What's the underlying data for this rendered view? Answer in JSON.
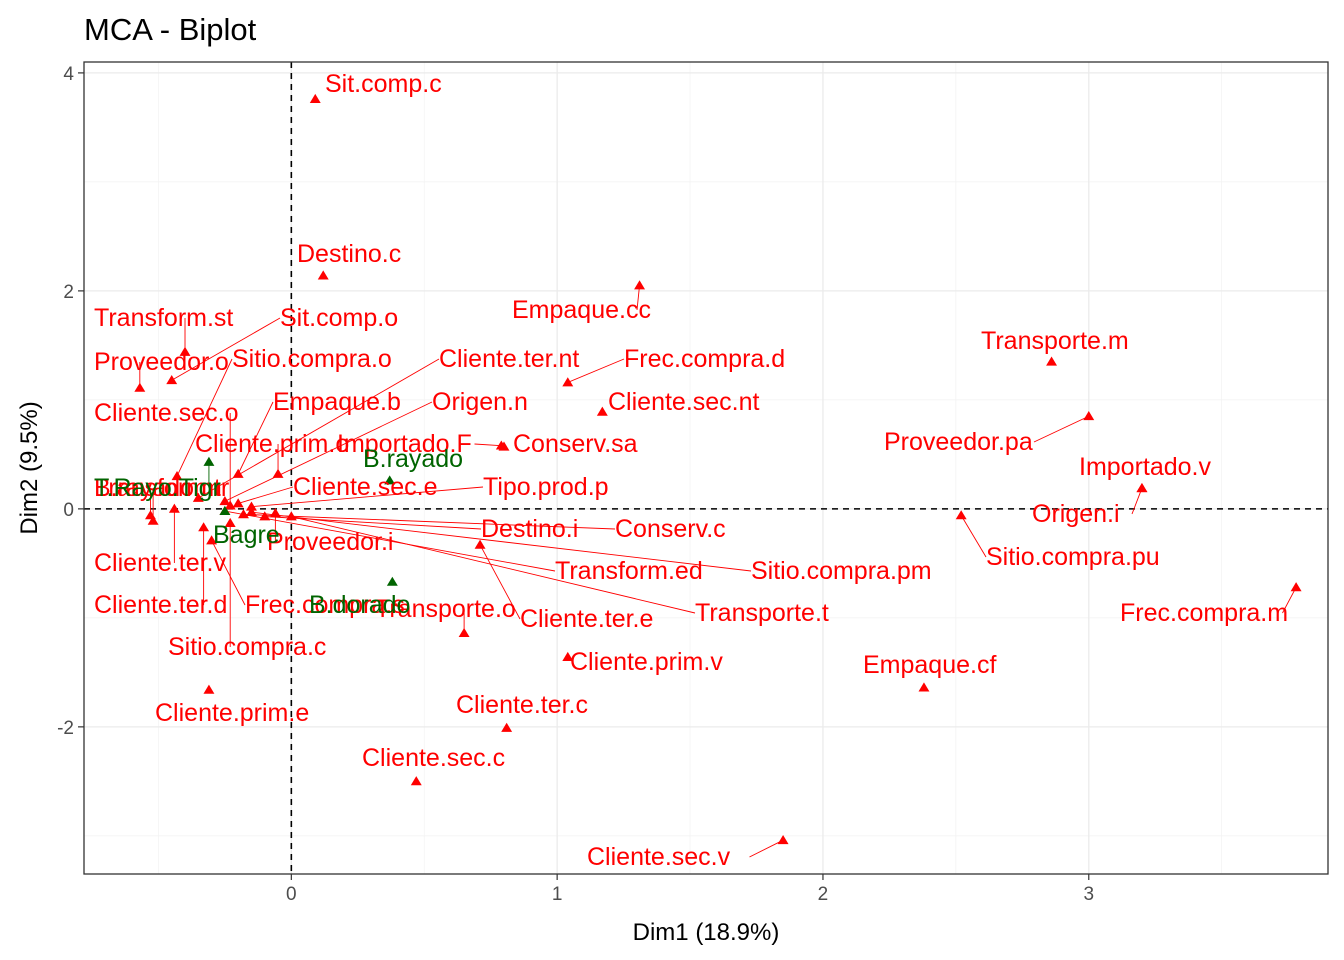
{
  "chart_data": {
    "type": "scatter",
    "title": "MCA - Biplot",
    "xlabel": "Dim1 (18.9%)",
    "ylabel": "Dim2 (9.5%)",
    "xlim": [
      -0.78,
      3.9
    ],
    "ylim": [
      -3.35,
      4.1
    ],
    "x_ticks": [
      0,
      1,
      2,
      3
    ],
    "y_ticks": [
      -2,
      0,
      2,
      4
    ],
    "grid": true,
    "reference_lines": {
      "x": 0,
      "y": 0,
      "style": "dashed"
    },
    "colors": {
      "variables": "#ff0000",
      "supplementary": "#006400"
    },
    "series": [
      {
        "color": "#ff0000",
        "points": [
          {
            "label": "Sit.comp.c",
            "x": 0.09,
            "y": 3.76
          },
          {
            "label": "Destino.c",
            "x": 0.12,
            "y": 2.14
          },
          {
            "label": "Empaque.cc",
            "x": 1.31,
            "y": 2.05
          },
          {
            "label": "Transform.st",
            "x": -0.4,
            "y": 1.44
          },
          {
            "label": "Sit.comp.o",
            "x": -0.45,
            "y": 1.18
          },
          {
            "label": "Proveedor.o",
            "x": -0.57,
            "y": 1.11
          },
          {
            "label": "Sitio.compra.o",
            "x": -0.43,
            "y": 0.3
          },
          {
            "label": "Cliente.ter.nt",
            "x": -0.35,
            "y": 0.1
          },
          {
            "label": "Frec.compra.d",
            "x": 1.04,
            "y": 1.16
          },
          {
            "label": "Cliente.sec.nt",
            "x": 1.17,
            "y": 0.89
          },
          {
            "label": "Cliente.sec.o",
            "x": -0.23,
            "y": 0.03
          },
          {
            "label": "Empaque.b",
            "x": -0.2,
            "y": 0.32
          },
          {
            "label": "Origen.n",
            "x": -0.25,
            "y": 0.07
          },
          {
            "label": "Cliente.prim.o",
            "x": -0.05,
            "y": 0.32
          },
          {
            "label": "Importado.F",
            "x": 0.79,
            "y": 0.58
          },
          {
            "label": "Conserv.sa",
            "x": 0.8,
            "y": 0.57
          },
          {
            "label": "Cliente.sec.e",
            "x": -0.2,
            "y": 0.05
          },
          {
            "label": "Tipo.prod.p",
            "x": -0.15,
            "y": 0.02
          },
          {
            "label": "Transform.tr",
            "x": -0.53,
            "y": -0.06
          },
          {
            "label": "B.rayado.m",
            "x": -0.52,
            "y": -0.11
          },
          {
            "label": "Cliente.ter.v",
            "x": -0.44,
            "y": 0.0
          },
          {
            "label": "Cliente.ter.d",
            "x": -0.33,
            "y": -0.17
          },
          {
            "label": "Frec.compra.s",
            "x": -0.3,
            "y": -0.29
          },
          {
            "label": "Sitio.compra.c",
            "x": -0.23,
            "y": -0.13
          },
          {
            "label": "Cliente.prim.e",
            "x": -0.31,
            "y": -1.66
          },
          {
            "label": "Destino.i",
            "x": -0.1,
            "y": -0.07
          },
          {
            "label": "Conserv.c",
            "x": -0.18,
            "y": -0.05
          },
          {
            "label": "Proveedor.i",
            "x": -0.06,
            "y": -0.04
          },
          {
            "label": "Transform.ed",
            "x": -0.25,
            "y": -0.02
          },
          {
            "label": "Sitio.compra.pm",
            "x": -0.15,
            "y": -0.03
          },
          {
            "label": "Transporte.t",
            "x": 0.0,
            "y": -0.07
          },
          {
            "label": "Transporte.o",
            "x": 0.65,
            "y": -1.14
          },
          {
            "label": "Cliente.ter.e",
            "x": 0.71,
            "y": -0.33
          },
          {
            "label": "Cliente.prim.v",
            "x": 1.04,
            "y": -1.36
          },
          {
            "label": "Cliente.ter.c",
            "x": 0.81,
            "y": -2.01
          },
          {
            "label": "Cliente.sec.c",
            "x": 0.47,
            "y": -2.5
          },
          {
            "label": "Cliente.sec.v",
            "x": 1.85,
            "y": -3.04
          },
          {
            "label": "Transporte.m",
            "x": 2.86,
            "y": 1.35
          },
          {
            "label": "Proveedor.pa",
            "x": 3.0,
            "y": 0.85
          },
          {
            "label": "Importado.v",
            "x": 3.2,
            "y": 0.19
          },
          {
            "label": "Origen.i",
            "x": 3.2,
            "y": 0.19
          },
          {
            "label": "Sitio.compra.pu",
            "x": 2.52,
            "y": -0.06
          },
          {
            "label": "Frec.compra.m",
            "x": 3.78,
            "y": -0.72
          },
          {
            "label": "Empaque.cf",
            "x": 2.38,
            "y": -1.64
          }
        ]
      },
      {
        "color": "#006400",
        "points": [
          {
            "label": "B.rayado",
            "x": 0.37,
            "y": 0.26
          },
          {
            "label": "T.Rayo.Tigr",
            "x": -0.31,
            "y": 0.43
          },
          {
            "label": "Bagre",
            "x": -0.25,
            "y": -0.02
          },
          {
            "label": "B.dorado",
            "x": 0.38,
            "y": -0.67
          }
        ]
      }
    ]
  }
}
